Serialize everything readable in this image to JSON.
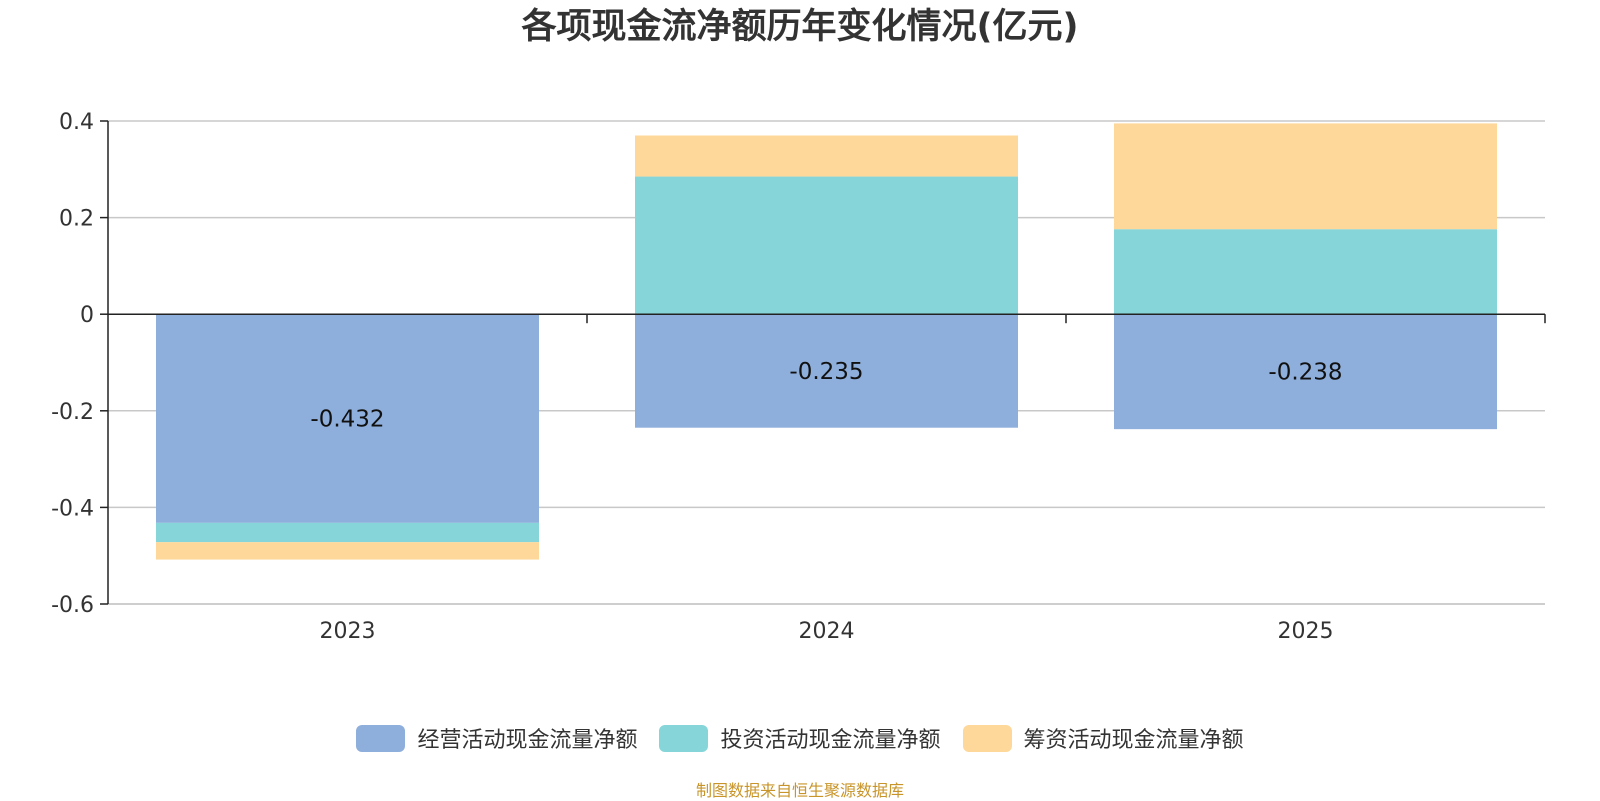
{
  "colors": {
    "operating": "#8eaedb",
    "investing": "#86d5d8",
    "financing": "#fed89a",
    "grid": "#c8c8c8",
    "axis": "#222222",
    "source": "#c8952a"
  },
  "chart_data": {
    "type": "bar",
    "stacked": true,
    "title": "各项现金流净额历年变化情况(亿元)",
    "xlabel": "",
    "ylabel": "",
    "categories": [
      "2023",
      "2024",
      "2025"
    ],
    "ylim": [
      -0.6,
      0.4
    ],
    "yticks": [
      0.4,
      0.2,
      0,
      -0.2,
      -0.4,
      -0.6
    ],
    "ytick_labels": [
      "0.4",
      "0.2",
      "0",
      "-0.2",
      "-0.4",
      "-0.6"
    ],
    "grid": true,
    "legend_position": "bottom",
    "series": [
      {
        "name": "经营活动现金流量净额",
        "values": [
          -0.432,
          -0.235,
          -0.238
        ],
        "data_labels": [
          "-0.432",
          "-0.235",
          "-0.238"
        ]
      },
      {
        "name": "投资活动现金流量净额",
        "values": [
          -0.04,
          0.285,
          0.176
        ]
      },
      {
        "name": "筹资活动现金流量净额",
        "values": [
          -0.036,
          0.085,
          0.219
        ]
      }
    ],
    "source_note": "制图数据来自恒生聚源数据库"
  }
}
